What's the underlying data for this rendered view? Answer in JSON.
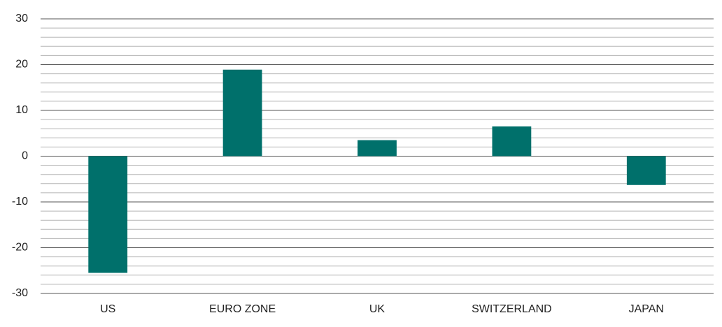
{
  "chart_data": {
    "type": "bar",
    "categories": [
      "US",
      "EURO ZONE",
      "UK",
      "SWITZERLAND",
      "JAPAN"
    ],
    "values": [
      -25.5,
      18.9,
      3.5,
      6.5,
      -6.3
    ],
    "color": "#00706b",
    "ylim": [
      -30,
      30
    ],
    "yticks": [
      -30,
      -20,
      -10,
      0,
      10,
      20,
      30
    ],
    "minor_yticks": [
      -28,
      -26,
      -24,
      -22,
      -18,
      -16,
      -14,
      -12,
      -8,
      -6,
      -4,
      -2,
      2,
      4,
      6,
      8,
      12,
      14,
      16,
      18,
      22,
      24,
      26,
      28
    ],
    "grid": true
  }
}
